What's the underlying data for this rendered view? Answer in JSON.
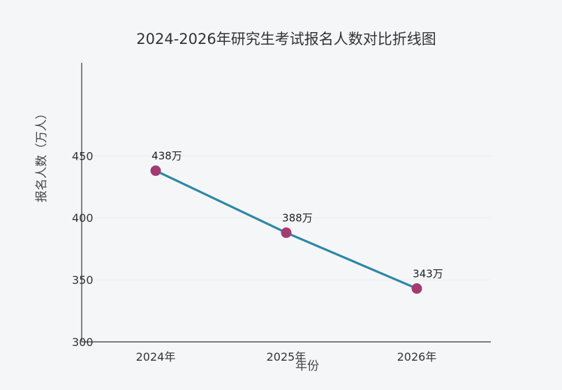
{
  "chart_data": {
    "type": "line",
    "title": "2024-2026年研究生考试报名人数对比折线图",
    "xlabel": "年份",
    "ylabel": "报名人数（万人）",
    "categories": [
      "2024年",
      "2025年",
      "2026年"
    ],
    "series": [
      {
        "values": [
          438,
          388,
          343
        ]
      }
    ],
    "data_labels": [
      "438万",
      "388万",
      "343万"
    ],
    "yticks": [
      300,
      350,
      400,
      450
    ],
    "ylim": [
      300,
      525
    ],
    "grid": true,
    "colors": {
      "line": "#2e86a6",
      "marker": "#a23b72"
    }
  }
}
